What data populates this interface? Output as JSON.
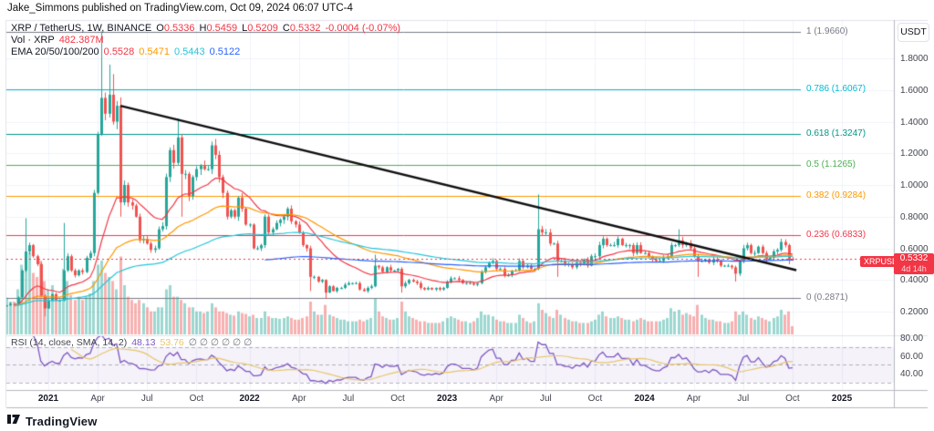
{
  "header": {
    "attribution": "Jake_Simmons published on TradingView.com, Oct 09, 2024 06:07 UTC-4"
  },
  "legend": {
    "symbol_title": "XRP / TetherUS, 1W, BINANCE",
    "o_key": "O",
    "o_val": "0.5336",
    "h_key": "H",
    "h_val": "0.5459",
    "l_key": "L",
    "l_val": "0.5209",
    "c_key": "C",
    "c_val": "0.5332",
    "change": "-0.0004 (-0.07%)",
    "vol_label": "Vol · XRP",
    "vol_value": "482.387M",
    "ema_label": "EMA 20/50/100/200",
    "ema_values": [
      "0.5528",
      "0.5471",
      "0.5443",
      "0.5122"
    ]
  },
  "rsi_legend": {
    "label": "RSI (14, close, SMA, 14, 2)",
    "rsi_value": "48.13",
    "sma_value": "53.76",
    "empties": "∅  ∅  ∅  ∅  ∅  ∅"
  },
  "price_axis": {
    "currency_button": "USDT",
    "ticks": [
      {
        "label": "1.8000",
        "value": 1.8
      },
      {
        "label": "1.6000",
        "value": 1.6
      },
      {
        "label": "1.4000",
        "value": 1.4
      },
      {
        "label": "1.2000",
        "value": 1.2
      },
      {
        "label": "1.0000",
        "value": 1.0
      },
      {
        "label": "0.8000",
        "value": 0.8
      },
      {
        "label": "0.6000",
        "value": 0.6
      },
      {
        "label": "0.4000",
        "value": 0.4
      },
      {
        "label": "0.2000",
        "value": 0.2
      }
    ],
    "price_tag": {
      "symbol": "XRPUSDT",
      "price": "0.5332",
      "countdown": "4d 14h"
    }
  },
  "rsi_axis": {
    "ticks": [
      {
        "label": "80.00",
        "value": 80
      },
      {
        "label": "60.00",
        "value": 60
      },
      {
        "label": "40.00",
        "value": 40
      }
    ]
  },
  "time_axis": {
    "ticks": [
      {
        "label": "2021",
        "week": 11,
        "major": true
      },
      {
        "label": "Apr",
        "week": 24,
        "major": false
      },
      {
        "label": "Jul",
        "week": 37,
        "major": false
      },
      {
        "label": "Oct",
        "week": 50,
        "major": false
      },
      {
        "label": "2022",
        "week": 64,
        "major": true
      },
      {
        "label": "Apr",
        "week": 77,
        "major": false
      },
      {
        "label": "Jul",
        "week": 90,
        "major": false
      },
      {
        "label": "Oct",
        "week": 103,
        "major": false
      },
      {
        "label": "2023",
        "week": 116,
        "major": true
      },
      {
        "label": "Apr",
        "week": 129,
        "major": false
      },
      {
        "label": "Jul",
        "week": 142,
        "major": false
      },
      {
        "label": "Oct",
        "week": 155,
        "major": false
      },
      {
        "label": "2024",
        "week": 168,
        "major": true
      },
      {
        "label": "Apr",
        "week": 181,
        "major": false
      },
      {
        "label": "Jul",
        "week": 194,
        "major": false
      },
      {
        "label": "Oct",
        "week": 207,
        "major": false
      },
      {
        "label": "2025",
        "week": 220,
        "major": true
      }
    ]
  },
  "footer": {
    "logo_text": "TradingView"
  },
  "colors": {
    "up": "#26a69a",
    "down": "#ef5350",
    "vol_up": "rgba(38,166,154,0.45)",
    "vol_down": "rgba(239,83,80,0.45)",
    "ema20": "#f23645",
    "ema50": "#ff9800",
    "ema100": "#26c6da",
    "ema200": "#2962ff",
    "rsi": "#7e57c2",
    "rsi_sma": "#e7c66a",
    "trendline": "#101010",
    "price_line": "#f23645",
    "grid": "#f0f3fa",
    "frame": "#b6b9c1",
    "divider": "#e0e3eb",
    "fib_gray": "#787b86",
    "rsi_band": "rgba(126,87,194,0.08)",
    "rsi_dash": "rgba(120,123,134,0.55)"
  },
  "chart_data": {
    "type": "candlestick",
    "symbol": "XRP/USDT",
    "interval": "1W",
    "exchange": "BINANCE",
    "ohlc_current": {
      "open": 0.5336,
      "high": 0.5459,
      "low": 0.5209,
      "close": 0.5332,
      "change": -0.0004,
      "change_pct": -0.07
    },
    "volume_current": "482.387M",
    "ylim": [
      0.056,
      2.042
    ],
    "rsi_range_visible": [
      20,
      83
    ],
    "fib_levels": [
      {
        "label": "1 (1.9660)",
        "value": 1.966,
        "color": "#787b86"
      },
      {
        "label": "0.786 (1.6067)",
        "value": 1.6067,
        "color": "#00bcd4"
      },
      {
        "label": "0.618 (1.3247)",
        "value": 1.3247,
        "color": "#009688"
      },
      {
        "label": "0.5 (1.1265)",
        "value": 1.1265,
        "color": "#4caf50"
      },
      {
        "label": "0.382 (0.9284)",
        "value": 0.9284,
        "color": "#ff9800"
      },
      {
        "label": "0.236 (0.6833)",
        "value": 0.6833,
        "color": "#f23645"
      },
      {
        "label": "0 (0.2871)",
        "value": 0.2871,
        "color": "#787b86"
      }
    ],
    "trendline": {
      "week_a": 30,
      "price_a": 1.5,
      "week_b": 208,
      "price_b": 0.462
    },
    "current_price": 0.5332,
    "closes": [
      0.24,
      0.25,
      0.24,
      0.29,
      0.46,
      0.58,
      0.62,
      0.55,
      0.5,
      0.3,
      0.22,
      0.27,
      0.31,
      0.27,
      0.27,
      0.46,
      0.55,
      0.46,
      0.43,
      0.46,
      0.45,
      0.54,
      0.57,
      0.95,
      1.32,
      1.55,
      1.45,
      1.57,
      1.4,
      1.5,
      0.89,
      1.0,
      0.89,
      0.87,
      0.8,
      0.65,
      0.66,
      0.63,
      0.59,
      0.6,
      0.72,
      0.74,
      1.05,
      1.22,
      1.14,
      1.3,
      1.07,
      1.07,
      0.93,
      1.05,
      1.1,
      1.12,
      1.1,
      1.1,
      1.25,
      1.19,
      1.05,
      0.95,
      0.8,
      0.84,
      0.8,
      0.92,
      0.85,
      0.75,
      0.75,
      0.6,
      0.6,
      0.62,
      0.8,
      0.7,
      0.72,
      0.76,
      0.78,
      0.8,
      0.85,
      0.77,
      0.75,
      0.7,
      0.62,
      0.6,
      0.42,
      0.42,
      0.39,
      0.4,
      0.32,
      0.36,
      0.33,
      0.35,
      0.35,
      0.37,
      0.38,
      0.38,
      0.38,
      0.34,
      0.33,
      0.35,
      0.36,
      0.49,
      0.48,
      0.45,
      0.48,
      0.46,
      0.46,
      0.47,
      0.36,
      0.38,
      0.4,
      0.39,
      0.38,
      0.35,
      0.34,
      0.35,
      0.34,
      0.35,
      0.34,
      0.35,
      0.39,
      0.41,
      0.41,
      0.4,
      0.38,
      0.38,
      0.38,
      0.37,
      0.38,
      0.45,
      0.48,
      0.51,
      0.52,
      0.47,
      0.47,
      0.43,
      0.43,
      0.46,
      0.46,
      0.52,
      0.48,
      0.49,
      0.47,
      0.47,
      0.72,
      0.7,
      0.7,
      0.63,
      0.63,
      0.52,
      0.52,
      0.5,
      0.5,
      0.48,
      0.51,
      0.5,
      0.53,
      0.49,
      0.55,
      0.55,
      0.62,
      0.66,
      0.62,
      0.62,
      0.62,
      0.66,
      0.62,
      0.62,
      0.62,
      0.57,
      0.62,
      0.57,
      0.57,
      0.55,
      0.53,
      0.52,
      0.52,
      0.54,
      0.55,
      0.62,
      0.62,
      0.65,
      0.62,
      0.63,
      0.6,
      0.55,
      0.52,
      0.52,
      0.53,
      0.51,
      0.53,
      0.52,
      0.49,
      0.49,
      0.49,
      0.48,
      0.44,
      0.52,
      0.6,
      0.62,
      0.57,
      0.57,
      0.61,
      0.57,
      0.53,
      0.54,
      0.58,
      0.59,
      0.64,
      0.62,
      0.53,
      0.5332
    ],
    "open_overrides": {
      "207": 0.5336
    },
    "wick_overrides": {
      "5": [
        0.79,
        null
      ],
      "10": [
        null,
        0.17
      ],
      "15": [
        0.76,
        null
      ],
      "25": [
        1.97,
        null
      ],
      "27": [
        1.76,
        null
      ],
      "28": [
        1.7,
        null
      ],
      "30": [
        null,
        0.8
      ],
      "45": [
        1.42,
        null
      ],
      "46": [
        null,
        0.8
      ],
      "80": [
        null,
        0.33
      ],
      "84": [
        null,
        0.28
      ],
      "97": [
        0.56,
        null
      ],
      "104": [
        null,
        0.32
      ],
      "140": [
        0.94,
        null
      ],
      "145": [
        null,
        0.42
      ],
      "177": [
        0.72,
        null
      ],
      "182": [
        null,
        0.42
      ],
      "192": [
        null,
        0.39
      ],
      "206": [
        null,
        0.5
      ],
      "207": [
        0.5459,
        0.5209
      ]
    },
    "volumes_rel": [
      0.45,
      0.4,
      0.4,
      0.55,
      0.85,
      0.95,
      1.0,
      0.75,
      0.7,
      0.9,
      0.65,
      0.55,
      0.6,
      0.48,
      0.42,
      0.8,
      0.65,
      0.48,
      0.42,
      0.46,
      0.42,
      0.46,
      0.5,
      0.65,
      0.85,
      0.9,
      0.75,
      0.7,
      0.65,
      0.55,
      0.95,
      0.6,
      0.46,
      0.42,
      0.38,
      0.42,
      0.38,
      0.33,
      0.28,
      0.28,
      0.33,
      0.33,
      0.55,
      0.6,
      0.46,
      0.46,
      0.42,
      0.38,
      0.33,
      0.33,
      0.28,
      0.28,
      0.26,
      0.28,
      0.38,
      0.33,
      0.28,
      0.28,
      0.26,
      0.24,
      0.23,
      0.28,
      0.26,
      0.25,
      0.22,
      0.24,
      0.2,
      0.2,
      0.28,
      0.22,
      0.2,
      0.2,
      0.19,
      0.2,
      0.22,
      0.2,
      0.18,
      0.18,
      0.2,
      0.22,
      0.4,
      0.28,
      0.24,
      0.24,
      0.36,
      0.24,
      0.22,
      0.2,
      0.18,
      0.18,
      0.16,
      0.16,
      0.16,
      0.18,
      0.16,
      0.18,
      0.2,
      0.44,
      0.28,
      0.22,
      0.2,
      0.18,
      0.18,
      0.2,
      0.4,
      0.28,
      0.22,
      0.2,
      0.18,
      0.16,
      0.16,
      0.14,
      0.14,
      0.14,
      0.14,
      0.16,
      0.2,
      0.22,
      0.2,
      0.18,
      0.16,
      0.16,
      0.14,
      0.16,
      0.2,
      0.28,
      0.24,
      0.24,
      0.22,
      0.18,
      0.16,
      0.16,
      0.14,
      0.14,
      0.14,
      0.24,
      0.2,
      0.16,
      0.14,
      0.16,
      0.38,
      0.3,
      0.26,
      0.22,
      0.2,
      0.3,
      0.24,
      0.2,
      0.18,
      0.16,
      0.16,
      0.14,
      0.14,
      0.14,
      0.16,
      0.18,
      0.24,
      0.28,
      0.22,
      0.2,
      0.2,
      0.22,
      0.2,
      0.18,
      0.18,
      0.16,
      0.18,
      0.2,
      0.18,
      0.16,
      0.16,
      0.16,
      0.16,
      0.18,
      0.2,
      0.32,
      0.28,
      0.3,
      0.24,
      0.26,
      0.24,
      0.22,
      0.36,
      0.24,
      0.2,
      0.18,
      0.18,
      0.16,
      0.16,
      0.14,
      0.14,
      0.16,
      0.28,
      0.24,
      0.28,
      0.24,
      0.2,
      0.18,
      0.22,
      0.2,
      0.18,
      0.16,
      0.2,
      0.22,
      0.3,
      0.24,
      0.28,
      0.1
    ],
    "indicators": {
      "emas": [
        20,
        50,
        100,
        200
      ],
      "rsi_length": 14,
      "rsi_sma_length": 14,
      "rsi_levels": [
        70,
        50,
        30
      ]
    }
  }
}
